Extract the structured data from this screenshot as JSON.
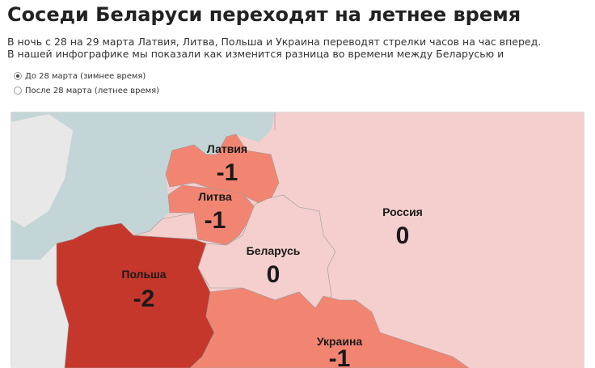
{
  "title": "Соседи Беларуси переходят на летнее время",
  "description": [
    "В ночь с 28 на 29 марта Латвия, Литва, Польша и Украина переводят стрелки часов на час вперед.",
    "В нашей инфографике мы показали как изменится разница во времени между Беларусью и"
  ],
  "options": [
    {
      "label": "До 28 марта (зимнее время)",
      "selected": true
    },
    {
      "label": "После 28 марта (летнее время)",
      "selected": false
    }
  ],
  "colors": {
    "sea": "#c3d5d6",
    "land": "#e8e8e8",
    "zero": "#f4cfcd",
    "minus1": "#f28572",
    "minus2": "#c6372b"
  },
  "countries": [
    {
      "name": "Латвия",
      "value": "-1"
    },
    {
      "name": "Литва",
      "value": "-1"
    },
    {
      "name": "Беларусь",
      "value": "0"
    },
    {
      "name": "Россия",
      "value": "0"
    },
    {
      "name": "Польша",
      "value": "-2"
    },
    {
      "name": "Украина",
      "value": "-1"
    }
  ]
}
